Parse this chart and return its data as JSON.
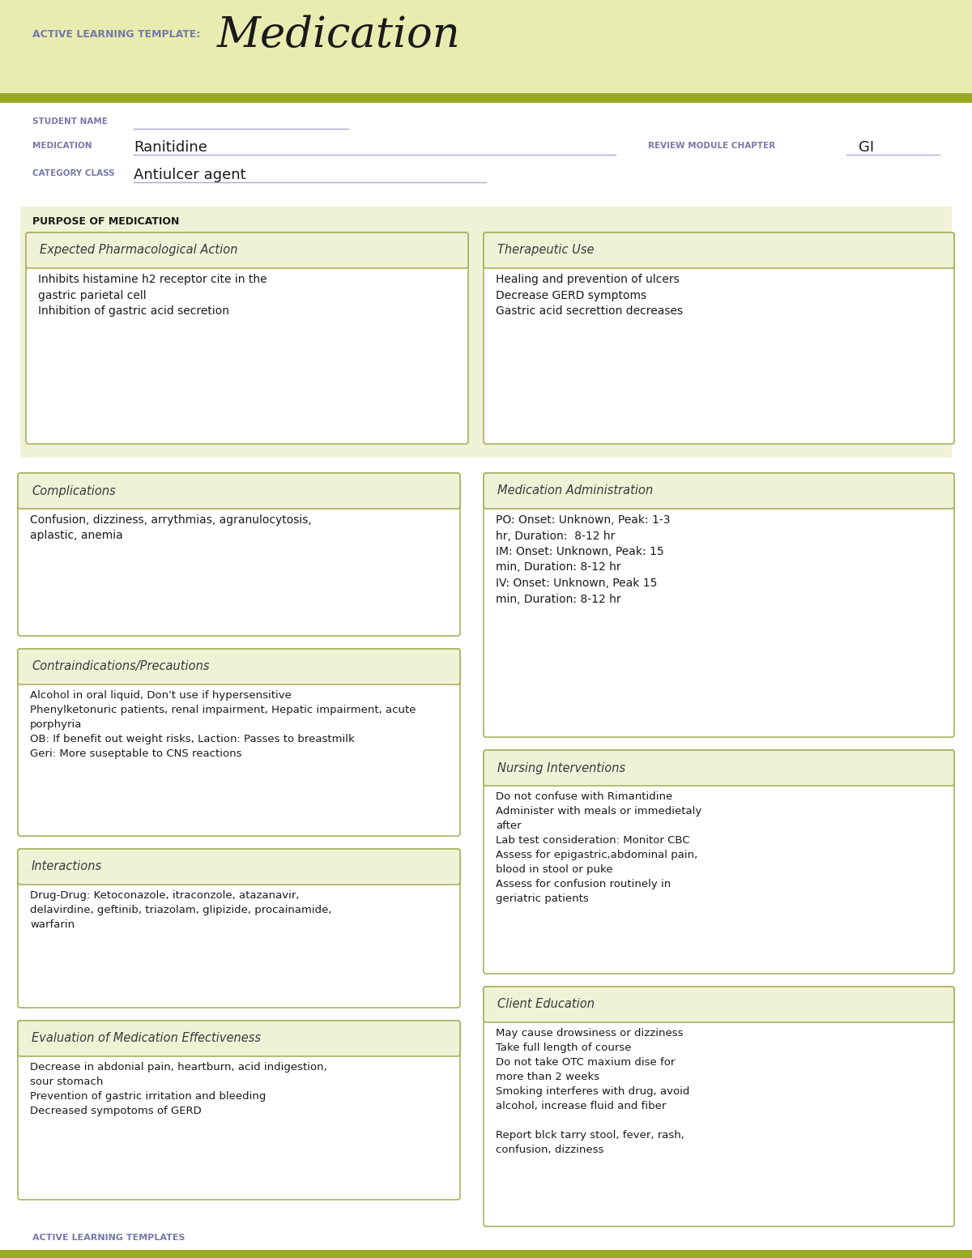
{
  "bg_header": "#e8ecb0",
  "bg_white": "#ffffff",
  "bg_section": "#f0f2d8",
  "olive_line": "#9aaa20",
  "border_color": "#aab060",
  "title_small": "ACTIVE LEARNING TEMPLATE:",
  "title_large": "Medication",
  "label_color": "#7878aa",
  "text_color": "#1a1a1a",
  "student_name_label": "STUDENT NAME",
  "medication_label": "MEDICATION",
  "medication_value": "Ranitidine",
  "review_label": "REVIEW MODULE CHAPTER",
  "review_value": "GI",
  "category_label": "CATEGORY CLASS",
  "category_value": "Antiulcer agent",
  "purpose_label": "PURPOSE OF MEDICATION",
  "box1_title": "Expected Pharmacological Action",
  "box1_content": "Inhibits histamine h2 receptor cite in the\ngastric parietal cell\nInhibition of gastric acid secretion",
  "box2_title": "Therapeutic Use",
  "box2_content": "Healing and prevention of ulcers\nDecrease GERD symptoms\nGastric acid secrettion decreases",
  "box3_title": "Complications",
  "box3_content": "Confusion, dizziness, arrythmias, agranulocytosis,\naplastic, anemia",
  "box4_title": "Medication Administration",
  "box4_content": "PO: Onset: Unknown, Peak: 1-3\nhr, Duration:  8-12 hr\nIM: Onset: Unknown, Peak: 15\nmin, Duration: 8-12 hr\nIV: Onset: Unknown, Peak 15\nmin, Duration: 8-12 hr",
  "box5_title": "Contraindications/Precautions",
  "box5_content": "Alcohol in oral liquid, Don't use if hypersensitive\nPhenylketonuric patients, renal impairment, Hepatic impairment, acute\nporphyria\nOB: If benefit out weight risks, Laction: Passes to breastmilk\nGeri: More suseptable to CNS reactions",
  "box6_title": "Nursing Interventions",
  "box6_content": "Do not confuse with Rimantidine\nAdminister with meals or immedietaly\nafter\nLab test consideration: Monitor CBC\nAssess for epigastric,abdominal pain,\nblood in stool or puke\nAssess for confusion routinely in\ngeriatric patients",
  "box7_title": "Interactions",
  "box7_content": "Drug-Drug: Ketoconazole, itraconzole, atazanavir,\ndelavirdine, geftinib, triazolam, glipizide, procainamide,\nwarfarin",
  "box8_title": "Client Education",
  "box8_content": "May cause drowsiness or dizziness\nTake full length of course\nDo not take OTC maxium dise for\nmore than 2 weeks\nSmoking interferes with drug, avoid\nalcohol, increase fluid and fiber\n\nReport blck tarry stool, fever, rash,\nconfusion, dizziness",
  "box9_title": "Evaluation of Medication Effectiveness",
  "box9_content": "Decrease in abdonial pain, heartburn, acid indigestion,\nsour stomach\nPrevention of gastric irritation and bleeding\nDecreased sympotoms of GERD",
  "footer_text": "ACTIVE LEARNING TEMPLATES"
}
